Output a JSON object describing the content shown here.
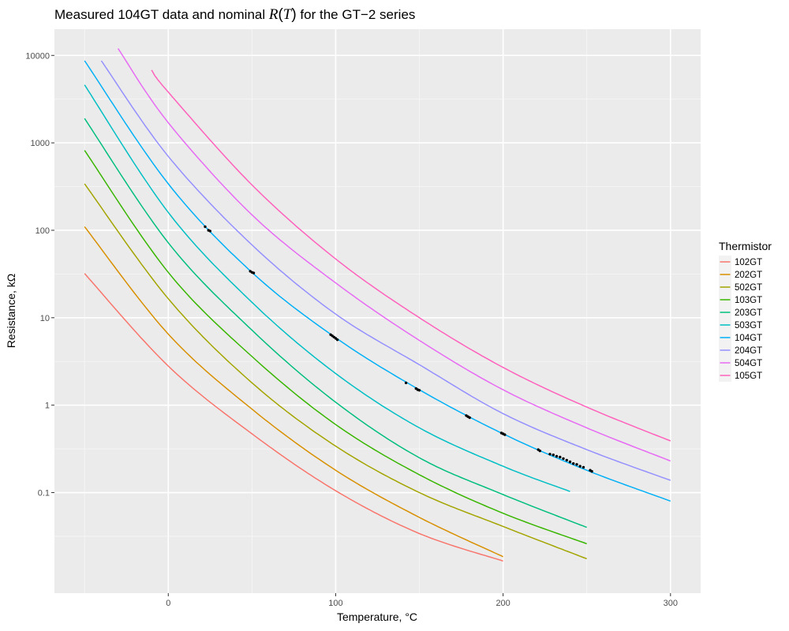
{
  "chart_data": {
    "type": "line",
    "title": "Measured 104GT data and nominal R(T) for the GT−2 series",
    "title_parts": {
      "prefix": "Measured 104GT data and nominal ",
      "symbol_R": "R",
      "open_paren": "(",
      "symbol_T": "T",
      "close_paren": ")",
      "suffix": " for the GT−2 series"
    },
    "xlabel": "Temperature, °C",
    "ylabel": "Resistance, kΩ",
    "xlim": [
      -68,
      318
    ],
    "ylim_log10": [
      -2.15,
      4.3
    ],
    "y_scale": "log10",
    "x_ticks": [
      0,
      100,
      200,
      300
    ],
    "x_tick_labels": [
      "0",
      "100",
      "200",
      "300"
    ],
    "y_ticks": [
      0.1,
      1,
      10,
      100,
      1000,
      10000
    ],
    "y_tick_labels": [
      "0.1",
      "1",
      "10",
      "100",
      "1000",
      "10000"
    ],
    "grid": true,
    "legend": {
      "title": "Thermistor",
      "placement": "right"
    },
    "series": [
      {
        "name": "102GT",
        "color": "#F8766D",
        "points": [
          [
            -50,
            32
          ],
          [
            0,
            2.8
          ],
          [
            50,
            0.47
          ],
          [
            100,
            0.105
          ],
          [
            150,
            0.034
          ],
          [
            200,
            0.0165
          ]
        ]
      },
      {
        "name": "202GT",
        "color": "#D89000",
        "points": [
          [
            -50,
            110
          ],
          [
            0,
            6.5
          ],
          [
            50,
            0.9
          ],
          [
            100,
            0.18
          ],
          [
            150,
            0.052
          ],
          [
            200,
            0.0185
          ]
        ]
      },
      {
        "name": "502GT",
        "color": "#A3A500",
        "points": [
          [
            -50,
            340
          ],
          [
            0,
            16.5
          ],
          [
            50,
            1.8
          ],
          [
            100,
            0.34
          ],
          [
            150,
            0.1
          ],
          [
            200,
            0.041
          ],
          [
            250,
            0.0175
          ]
        ]
      },
      {
        "name": "103GT",
        "color": "#39B600",
        "points": [
          [
            -50,
            820
          ],
          [
            0,
            33
          ],
          [
            50,
            3.6
          ],
          [
            100,
            0.6
          ],
          [
            150,
            0.16
          ],
          [
            200,
            0.058
          ],
          [
            250,
            0.026
          ]
        ]
      },
      {
        "name": "203GT",
        "color": "#00BF7D",
        "points": [
          [
            -50,
            1900
          ],
          [
            0,
            72
          ],
          [
            50,
            7.2
          ],
          [
            100,
            1.08
          ],
          [
            150,
            0.25
          ],
          [
            200,
            0.095
          ],
          [
            250,
            0.04
          ]
        ]
      },
      {
        "name": "503GT",
        "color": "#00BFC4",
        "points": [
          [
            -50,
            4600
          ],
          [
            0,
            160
          ],
          [
            50,
            15
          ],
          [
            100,
            2.3
          ],
          [
            150,
            0.55
          ],
          [
            200,
            0.2
          ],
          [
            240,
            0.103
          ]
        ]
      },
      {
        "name": "104GT",
        "color": "#00B0F6",
        "points": [
          [
            -50,
            8700
          ],
          [
            0,
            340
          ],
          [
            50,
            33
          ],
          [
            100,
            5.9
          ],
          [
            150,
            1.5
          ],
          [
            200,
            0.47
          ],
          [
            250,
            0.18
          ],
          [
            300,
            0.08
          ]
        ]
      },
      {
        "name": "204GT",
        "color": "#9590FF",
        "points": [
          [
            -40,
            8700
          ],
          [
            0,
            700
          ],
          [
            50,
            68
          ],
          [
            100,
            11
          ],
          [
            150,
            2.9
          ],
          [
            200,
            0.8
          ],
          [
            250,
            0.31
          ],
          [
            300,
            0.138
          ]
        ]
      },
      {
        "name": "504GT",
        "color": "#E76BF3",
        "points": [
          [
            -30,
            12000
          ],
          [
            0,
            1700
          ],
          [
            50,
            150
          ],
          [
            100,
            25
          ],
          [
            150,
            5.5
          ],
          [
            200,
            1.5
          ],
          [
            250,
            0.55
          ],
          [
            300,
            0.23
          ]
        ]
      },
      {
        "name": "105GT",
        "color": "#FF62BC",
        "points": [
          [
            -10,
            6800
          ],
          [
            0,
            3800
          ],
          [
            50,
            330
          ],
          [
            100,
            47
          ],
          [
            150,
            10
          ],
          [
            200,
            2.7
          ],
          [
            250,
            0.95
          ],
          [
            300,
            0.39
          ]
        ]
      }
    ],
    "measured": {
      "name": "104GT measured",
      "color": "#000000",
      "points": [
        [
          22,
          110
        ],
        [
          24,
          100
        ],
        [
          25,
          98
        ],
        [
          49,
          34
        ],
        [
          50,
          33
        ],
        [
          51,
          32.5
        ],
        [
          97,
          6.4
        ],
        [
          98,
          6.2
        ],
        [
          99,
          6.0
        ],
        [
          100,
          5.8
        ],
        [
          101,
          5.6
        ],
        [
          142,
          1.8
        ],
        [
          148,
          1.55
        ],
        [
          149,
          1.5
        ],
        [
          150,
          1.48
        ],
        [
          178,
          0.76
        ],
        [
          179,
          0.74
        ],
        [
          180,
          0.72
        ],
        [
          199,
          0.48
        ],
        [
          200,
          0.47
        ],
        [
          201,
          0.46
        ],
        [
          221,
          0.31
        ],
        [
          222,
          0.3
        ],
        [
          228,
          0.275
        ],
        [
          230,
          0.27
        ],
        [
          232,
          0.26
        ],
        [
          234,
          0.255
        ],
        [
          236,
          0.245
        ],
        [
          238,
          0.235
        ],
        [
          240,
          0.225
        ],
        [
          242,
          0.215
        ],
        [
          244,
          0.21
        ],
        [
          246,
          0.2
        ],
        [
          248,
          0.195
        ],
        [
          252,
          0.18
        ],
        [
          253,
          0.175
        ]
      ]
    }
  }
}
